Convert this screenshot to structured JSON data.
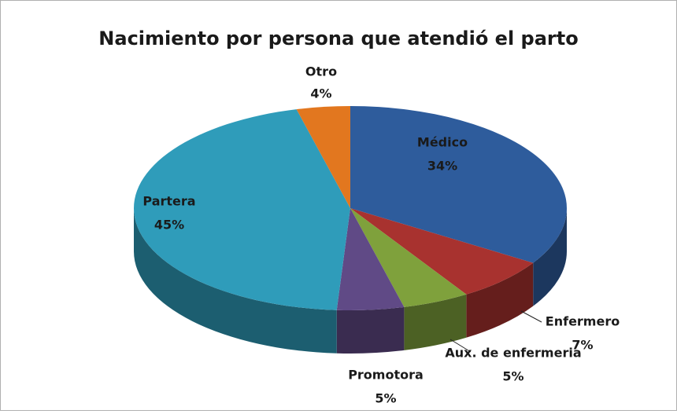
{
  "chart_data": {
    "type": "pie",
    "title": "Nacimiento por persona que atendió el parto",
    "categories": [
      "Médico",
      "Enfermero",
      "Aux. de enfermeria",
      "Promotora",
      "Partera",
      "Otro"
    ],
    "values": [
      34,
      7,
      5,
      5,
      45,
      4
    ],
    "value_labels": [
      "34%",
      "7%",
      "5%",
      "5%",
      "45%",
      "4%"
    ],
    "colors": [
      "#2e5c9c",
      "#a8322f",
      "#7fa13c",
      "#604a86",
      "#2f9cba",
      "#e2771f"
    ]
  }
}
